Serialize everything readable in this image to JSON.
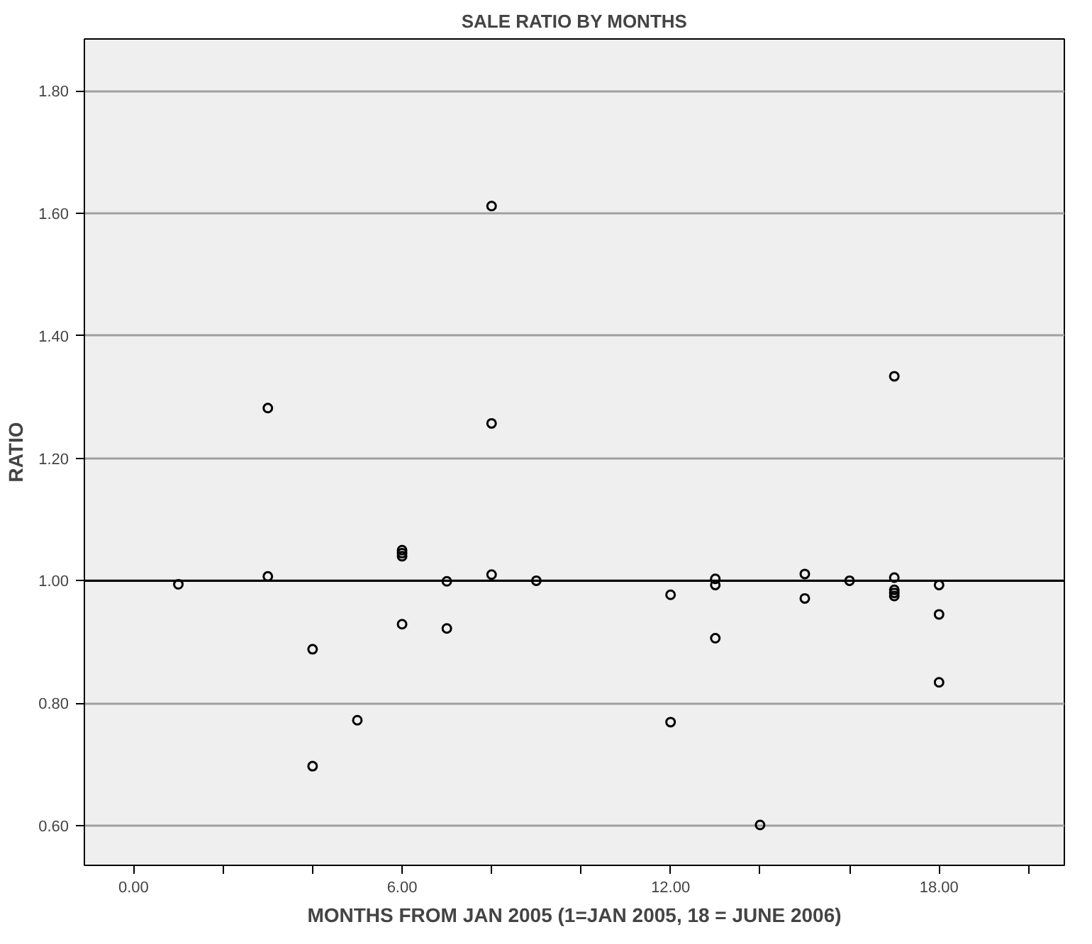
{
  "chart_data": {
    "type": "scatter",
    "title": "SALE RATIO BY MONTHS",
    "xlabel": "MONTHS FROM JAN 2005 (1=JAN 2005, 18 = JUNE 2006)",
    "ylabel": "RATIO",
    "x": [
      1,
      3,
      3,
      4,
      4,
      5,
      6,
      6,
      6,
      6,
      7,
      7,
      8,
      8,
      8,
      9,
      12,
      12,
      13,
      13,
      13,
      14,
      15,
      15,
      16,
      17,
      17,
      17,
      17,
      17,
      18,
      18,
      18
    ],
    "values": [
      0.994,
      1.282,
      1.007,
      0.888,
      0.697,
      0.772,
      1.05,
      1.045,
      1.04,
      0.929,
      0.999,
      0.922,
      1.612,
      1.257,
      1.01,
      1.0,
      0.977,
      0.769,
      1.003,
      0.993,
      0.906,
      0.601,
      1.011,
      0.971,
      1.0,
      1.334,
      1.005,
      0.985,
      0.98,
      0.975,
      0.993,
      0.945,
      0.834
    ],
    "color": "#000000",
    "marker": "circle",
    "xlim": [
      -1.1,
      20.8
    ],
    "ylim": [
      0.535,
      1.885
    ],
    "xticks": [
      {
        "value": 0,
        "label": "0.00"
      },
      {
        "value": 2,
        "label": null
      },
      {
        "value": 4,
        "label": null
      },
      {
        "value": 6,
        "label": "6.00"
      },
      {
        "value": 8,
        "label": null
      },
      {
        "value": 10,
        "label": null
      },
      {
        "value": 12,
        "label": "12.00"
      },
      {
        "value": 14,
        "label": null
      },
      {
        "value": 16,
        "label": null
      },
      {
        "value": 18,
        "label": "18.00"
      },
      {
        "value": 20,
        "label": null
      }
    ],
    "yticks": [
      {
        "value": 0.6,
        "label": "0.60"
      },
      {
        "value": 0.8,
        "label": "0.80"
      },
      {
        "value": 1.0,
        "label": "1.00"
      },
      {
        "value": 1.2,
        "label": "1.20"
      },
      {
        "value": 1.4,
        "label": "1.40"
      },
      {
        "value": 1.6,
        "label": "1.60"
      },
      {
        "value": 1.8,
        "label": "1.80"
      }
    ],
    "grid": "y",
    "ref_lines": [
      {
        "axis": "y",
        "value": 1.0,
        "label": null,
        "color": "#000000"
      }
    ]
  }
}
